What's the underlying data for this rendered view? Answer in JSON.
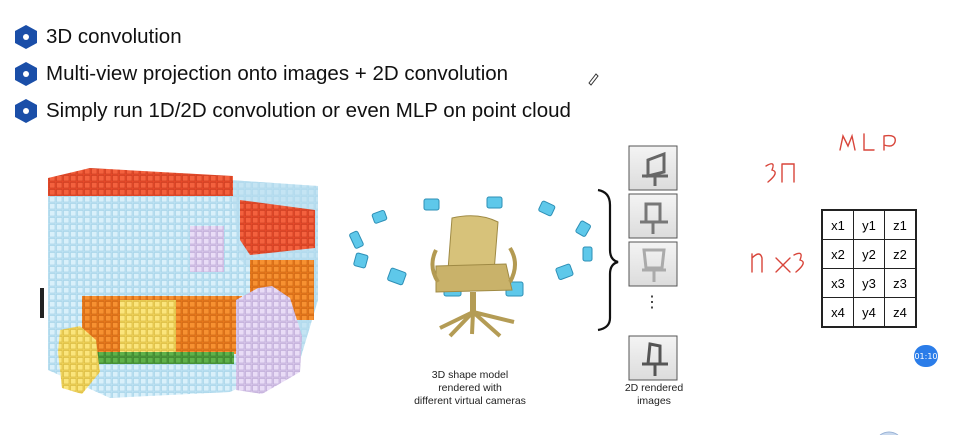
{
  "slide": {
    "bullets": [
      {
        "text": "3D convolution",
        "icon": "hexagon-bullet-icon"
      },
      {
        "text": "Multi-view projection onto images + 2D convolution",
        "icon": "hexagon-bullet-icon"
      },
      {
        "text": "Simply run 1D/2D convolution or even MLP on point cloud",
        "icon": "hexagon-bullet-icon"
      }
    ],
    "bullet_color": "#1a4ea8",
    "figure": {
      "caption_model_line1": "3D shape model",
      "caption_model_line2": "rendered with",
      "caption_model_line3": "different virtual cameras",
      "caption_rendered_line1": "2D rendered",
      "caption_rendered_line2": "images",
      "ellipsis": "⋮"
    },
    "point_table": {
      "rows": [
        [
          "x1",
          "y1",
          "z1"
        ],
        [
          "x2",
          "y2",
          "z2"
        ],
        [
          "x3",
          "y3",
          "z3"
        ],
        [
          "x4",
          "y4",
          "z4"
        ]
      ]
    },
    "handwriting": {
      "mlp": "MLP",
      "three_d": "3Π",
      "n_by_3": "n×3"
    },
    "ink_color": "#d8453a",
    "timer_label": "01:10"
  }
}
